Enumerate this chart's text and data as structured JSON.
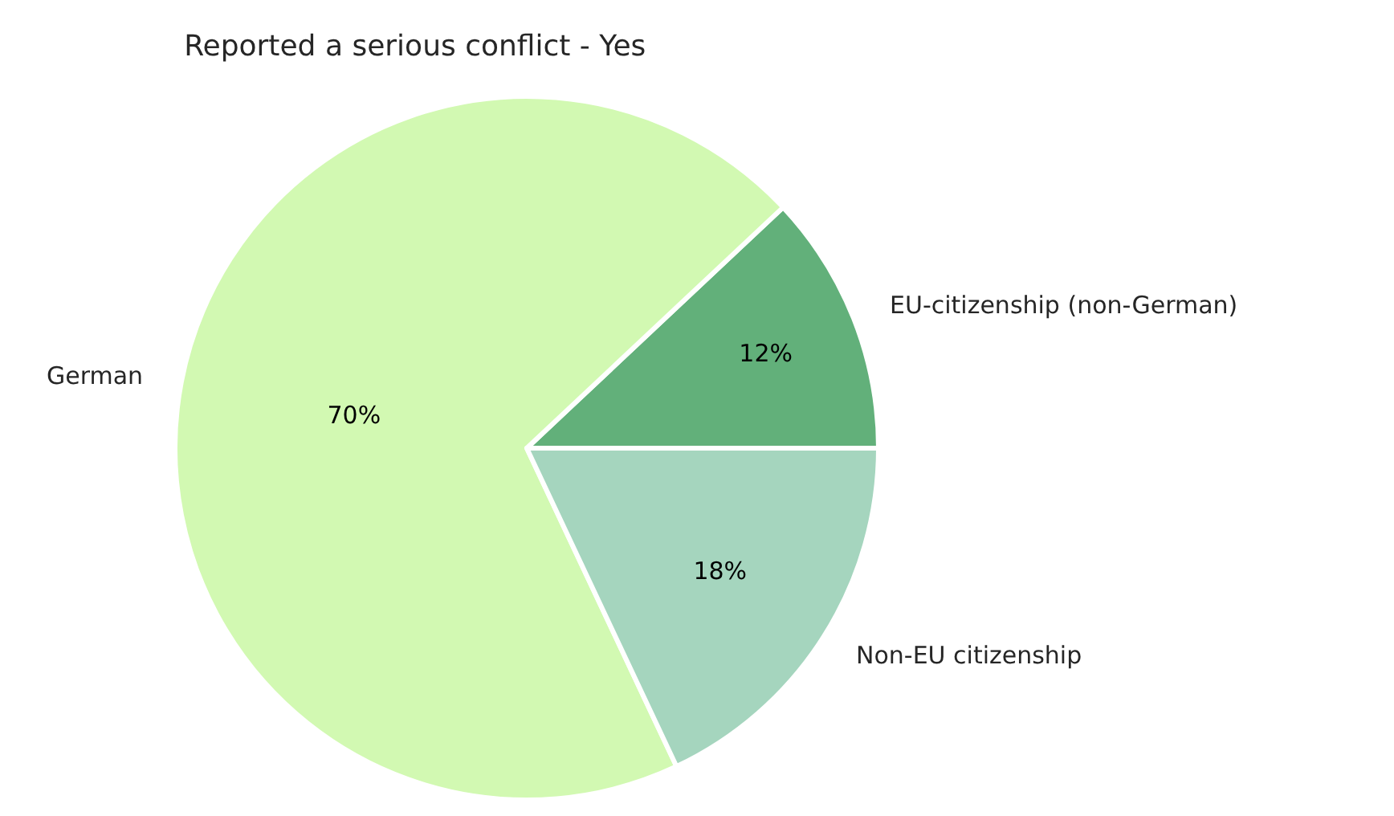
{
  "chart_data": {
    "type": "pie",
    "title": "Reported a serious conflict - Yes",
    "categories": [
      "EU-citizenship (non-German)",
      "German",
      "Non-EU citizenship"
    ],
    "values": [
      12,
      70,
      18
    ],
    "colors": [
      "#62b07a",
      "#d2f9b2",
      "#a5d5be"
    ],
    "value_labels": [
      "12%",
      "70%",
      "18%"
    ],
    "legend": false
  }
}
